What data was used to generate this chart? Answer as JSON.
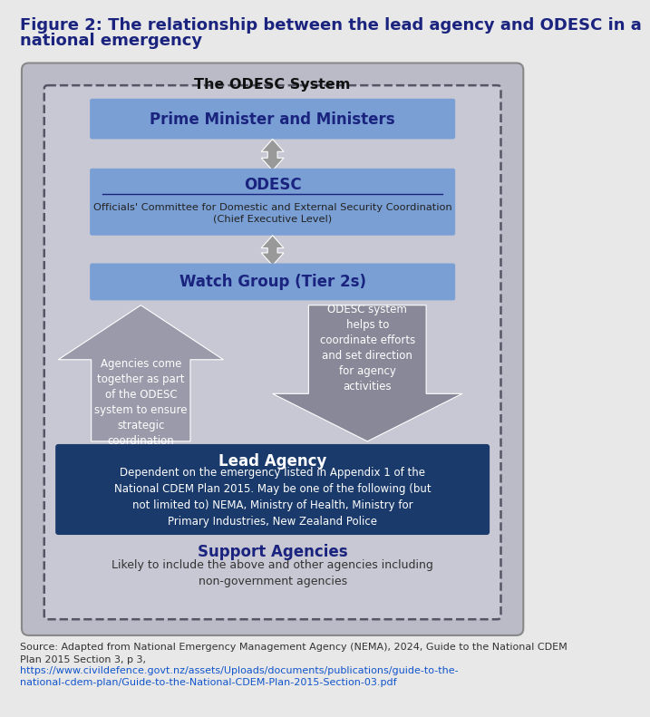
{
  "title_line1": "Figure 2: The relationship between the lead agency and ODESC in a",
  "title_line2": "national emergency",
  "title_color": "#1a237e",
  "bg_color": "#e8e8e8",
  "outer_box_bg": "#bbbbc8",
  "inner_dashed_bg": "#c8c8d4",
  "odesc_system_label": "The ODESC System",
  "pm_box_color": "#7a9fd4",
  "pm_text": "Prime Minister and Ministers",
  "pm_text_color": "#1a237e",
  "odesc_box_color": "#7a9fd4",
  "odesc_title": "ODESC",
  "odesc_subtitle_line1": "Officials' Committee for Domestic and External Security Coordination",
  "odesc_subtitle_line2": "(Chief Executive Level)",
  "odesc_text_color": "#1a237e",
  "watchgroup_box_color": "#7a9fd4",
  "watchgroup_text": "Watch Group (Tier 2s)",
  "watchgroup_text_color": "#1a237e",
  "arrow_color": "#999999",
  "up_arrow_text": "Agencies come\ntogether as part\nof the ODESC\nsystem to ensure\nstrategic\ncoordination",
  "down_arrow_text": "ODESC system\nhelps to\ncoordinate efforts\nand set direction\nfor agency\nactivities",
  "arrow_text_color": "#ffffff",
  "lead_box_color": "#1a3a6b",
  "lead_title": "Lead Agency",
  "lead_subtitle": "Dependent on the emergency listed in Appendix 1 of the\nNational CDEM Plan 2015. May be one of the following (but\nnot limited to) NEMA, Ministry of Health, Ministry for\nPrimary Industries, New Zealand Police",
  "lead_title_color": "#ffffff",
  "lead_subtitle_color": "#ffffff",
  "support_title": "Support Agencies",
  "support_subtitle": "Likely to include the above and other agencies including\nnon-government agencies",
  "support_title_color": "#1a237e",
  "support_subtitle_color": "#333333",
  "source_text_plain": "Source: Adapted from National Emergency Management Agency (NEMA), 2024, Guide to the National CDEM\nPlan 2015 Section 3, p 3, ",
  "source_link_line1": "https://www.civildefence.govt.nz/assets/Uploads/documents/publications/guide-to-the-",
  "source_link_line2": "national-cdem-plan/Guide-to-the-National-CDEM-Plan-2015-Section-03.pdf",
  "source_color": "#333333",
  "link_color": "#1155cc"
}
